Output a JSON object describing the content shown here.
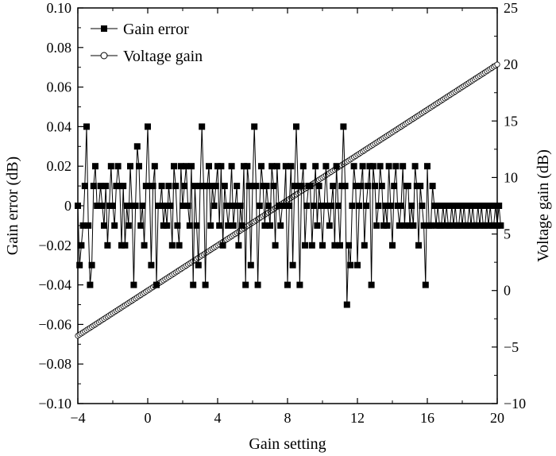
{
  "chart_data": {
    "type": "line",
    "title": "",
    "xlabel": "Gain setting",
    "ylabel_left": "Gain error (dB)",
    "ylabel_right": "Voltage gain (dB)",
    "xlim": [
      -4,
      20
    ],
    "ylim_left": [
      -0.1,
      0.1
    ],
    "ylim_right": [
      -10,
      25
    ],
    "x_ticks": [
      -4,
      0,
      4,
      8,
      12,
      16,
      20
    ],
    "x_tick_labels": [
      "−4",
      "0",
      "4",
      "8",
      "12",
      "16",
      "20"
    ],
    "y_left_ticks": [
      0.1,
      0.08,
      0.06,
      0.04,
      0.02,
      0,
      -0.02,
      -0.04,
      -0.06,
      -0.08,
      -0.1
    ],
    "y_left_tick_labels": [
      "0.10",
      "0.08",
      "0.06",
      "0.04",
      "0.02",
      "0",
      "−0.02",
      "−0.04",
      "−0.06",
      "−0.08",
      "−0.10"
    ],
    "y_right_ticks": [
      25,
      20,
      15,
      10,
      5,
      0,
      -5,
      -10
    ],
    "y_right_tick_labels": [
      "25",
      "20",
      "15",
      "10",
      "5",
      "0",
      "−5",
      "−10"
    ],
    "grid": false,
    "legend_position": "top-left",
    "series": [
      {
        "name": "Gain error",
        "axis": "left",
        "marker": "filled-square",
        "color": "#000000",
        "x_start": -4,
        "x_step": 0.1,
        "values": [
          0,
          -0.03,
          -0.02,
          -0.01,
          0.01,
          0.04,
          -0.01,
          -0.04,
          -0.03,
          0.01,
          0.02,
          0,
          0,
          0.01,
          0,
          -0.01,
          0.01,
          -0.02,
          0,
          0.02,
          0,
          -0.01,
          0.01,
          0.02,
          0.01,
          -0.02,
          0.01,
          -0.02,
          0,
          -0.01,
          0.02,
          0,
          -0.04,
          0,
          0.03,
          0.02,
          -0.01,
          0,
          -0.02,
          0.01,
          0.04,
          0.01,
          -0.03,
          0.01,
          0.02,
          -0.04,
          0,
          0,
          0.01,
          -0.01,
          0,
          -0.01,
          0.01,
          0,
          -0.02,
          0.02,
          0.01,
          -0.01,
          -0.02,
          0.02,
          0,
          0.01,
          0.02,
          0,
          -0.01,
          0.02,
          -0.04,
          0.01,
          -0.01,
          -0.03,
          0.01,
          0.04,
          0.01,
          -0.04,
          0.01,
          0.02,
          -0.01,
          0.01,
          0,
          0.01,
          0.02,
          -0.01,
          0.02,
          -0.02,
          0.01,
          0,
          -0.01,
          0,
          0.02,
          -0.01,
          0,
          0.01,
          -0.02,
          0,
          -0.01,
          0.02,
          -0.04,
          0.02,
          0.01,
          -0.03,
          0.01,
          0.04,
          0.01,
          -0.04,
          0,
          0.02,
          0.01,
          -0.01,
          0.01,
          0,
          -0.01,
          0.02,
          0.01,
          -0.02,
          0.02,
          0,
          -0.01,
          0,
          0,
          0.02,
          -0.04,
          0,
          0.02,
          -0.03,
          0.01,
          0.04,
          0.01,
          -0.04,
          0.01,
          0.02,
          -0.02,
          0,
          0.01,
          0.01,
          -0.02,
          0,
          0.02,
          -0.01,
          0.01,
          0,
          -0.02,
          0,
          0.02,
          0,
          -0.01,
          0,
          0.01,
          -0.02,
          0.02,
          0,
          -0.02,
          0.01,
          0.04,
          0.01,
          -0.05,
          -0.02,
          -0.03,
          0,
          0.02,
          0.01,
          -0.03,
          0,
          0.01,
          0.02,
          -0.02,
          0,
          0.01,
          0.02,
          -0.04,
          0.02,
          0.01,
          -0.01,
          0,
          0.02,
          0.01,
          -0.01,
          0,
          -0.01,
          0.02,
          0,
          -0.02,
          0.01,
          0.02,
          0,
          -0.01,
          0,
          0.02,
          -0.01,
          0.01,
          0.01,
          -0.01,
          0,
          -0.01,
          0.02,
          0.01,
          -0.02,
          0.01,
          0,
          -0.01,
          -0.04,
          0.02,
          -0.01,
          -0.01,
          0.01,
          0,
          -0.01,
          0,
          -0.01,
          -0.01,
          0,
          -0.01,
          0,
          -0.01,
          -0.01,
          0,
          -0.01,
          0,
          -0.01,
          -0.01,
          0,
          -0.01,
          0,
          -0.01,
          -0.01,
          0,
          -0.01,
          0,
          -0.01,
          -0.01,
          0,
          -0.01,
          0,
          -0.01,
          -0.01,
          0,
          -0.01,
          0,
          -0.01,
          -0.01,
          0,
          -0.01,
          0,
          -0.01
        ]
      },
      {
        "name": "Voltage gain",
        "axis": "right",
        "marker": "open-circle",
        "color": "#000000",
        "x_start": -4,
        "x_end": 20,
        "x_step": 0.1,
        "y_start": -4,
        "y_end": 20
      }
    ]
  }
}
